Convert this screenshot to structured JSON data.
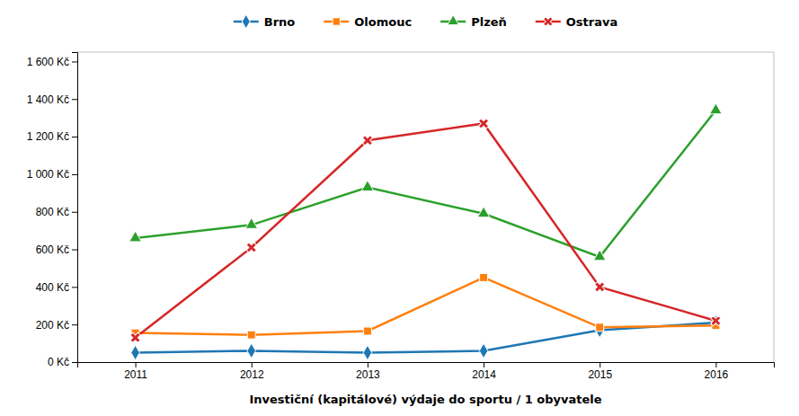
{
  "chart_data": {
    "type": "line",
    "xlabel": "Investiční (kapitálové) výdaje do sportu / 1 obyvatele",
    "x": [
      2011,
      2012,
      2013,
      2014,
      2015,
      2016
    ],
    "series": [
      {
        "name": "Brno",
        "marker": "diamond",
        "values": [
          50,
          60,
          50,
          60,
          170,
          210
        ]
      },
      {
        "name": "Olomouc",
        "marker": "square",
        "values": [
          155,
          145,
          165,
          450,
          185,
          195
        ]
      },
      {
        "name": "Plzeň",
        "marker": "triangle",
        "values": [
          660,
          730,
          930,
          790,
          560,
          1340
        ]
      },
      {
        "name": "Ostrava",
        "marker": "x",
        "values": [
          130,
          610,
          1180,
          1270,
          400,
          220
        ]
      }
    ],
    "xlim": [
      2010.5,
      2016.5
    ],
    "xticks": [
      2011,
      2012,
      2013,
      2014,
      2015,
      2016
    ],
    "ylim": [
      0,
      1650
    ],
    "yticks": [
      {
        "value": 0,
        "label": "0 Kč"
      },
      {
        "value": 200,
        "label": "200 Kč"
      },
      {
        "value": 400,
        "label": "400 Kč"
      },
      {
        "value": 600,
        "label": "600 Kč"
      },
      {
        "value": 800,
        "label": "800 Kč"
      },
      {
        "value": 1000,
        "label": "1 000 Kč"
      },
      {
        "value": 1200,
        "label": "1 200 Kč"
      },
      {
        "value": 1400,
        "label": "1 400 Kč"
      },
      {
        "value": 1600,
        "label": "1 600 Kč"
      }
    ],
    "grid": false,
    "legend": "top"
  }
}
